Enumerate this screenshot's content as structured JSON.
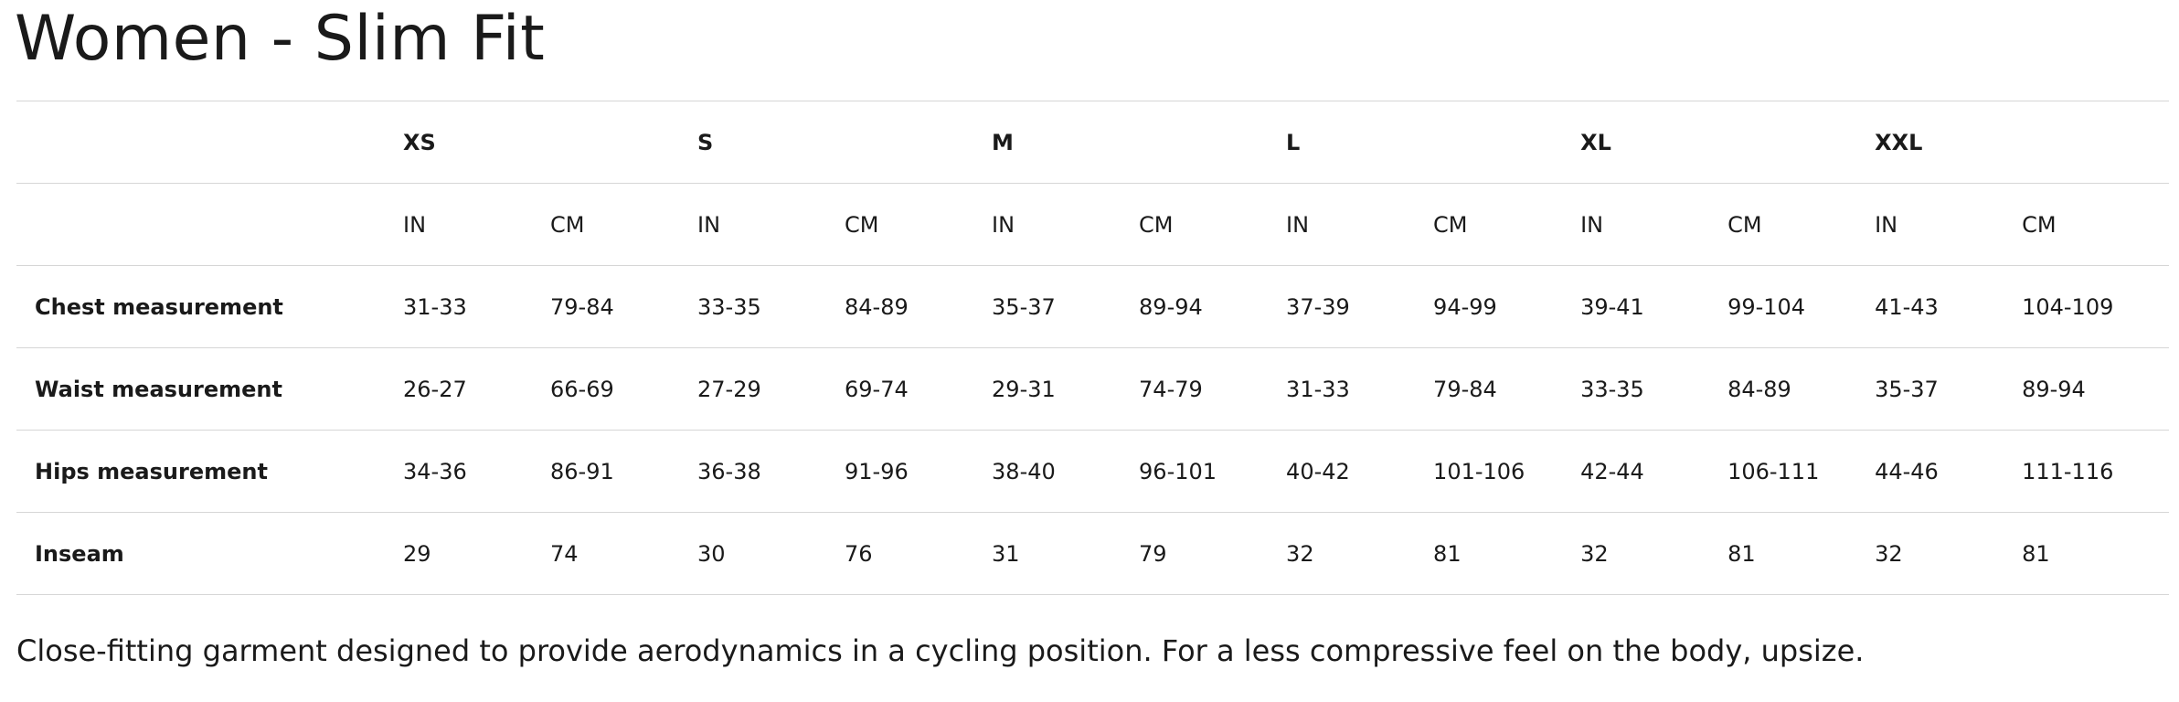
{
  "header": {
    "title": "Women - Slim Fit"
  },
  "table": {
    "sizes": [
      "XS",
      "S",
      "M",
      "L",
      "XL",
      "XXL"
    ],
    "units": [
      "IN",
      "CM",
      "IN",
      "CM",
      "IN",
      "CM",
      "IN",
      "CM",
      "IN",
      "CM",
      "IN",
      "CM"
    ],
    "rows": [
      {
        "label": "Chest measurement",
        "cells": [
          "31-33",
          "79-84",
          "33-35",
          "84-89",
          "35-37",
          "89-94",
          "37-39",
          "94-99",
          "39-41",
          "99-104",
          "41-43",
          "104-109"
        ]
      },
      {
        "label": "Waist measurement",
        "cells": [
          "26-27",
          "66-69",
          "27-29",
          "69-74",
          "29-31",
          "74-79",
          "31-33",
          "79-84",
          "33-35",
          "84-89",
          "35-37",
          "89-94"
        ]
      },
      {
        "label": "Hips measurement",
        "cells": [
          "34-36",
          "86-91",
          "36-38",
          "91-96",
          "38-40",
          "96-101",
          "40-42",
          "101-106",
          "42-44",
          "106-111",
          "44-46",
          "111-116"
        ]
      },
      {
        "label": "Inseam",
        "cells": [
          "29",
          "74",
          "30",
          "76",
          "31",
          "79",
          "32",
          "81",
          "32",
          "81",
          "32",
          "81"
        ]
      }
    ]
  },
  "footer": {
    "text": "Close-fitting garment designed to provide aerodynamics in a cycling position. For a less compressive feel on the body, upsize."
  }
}
